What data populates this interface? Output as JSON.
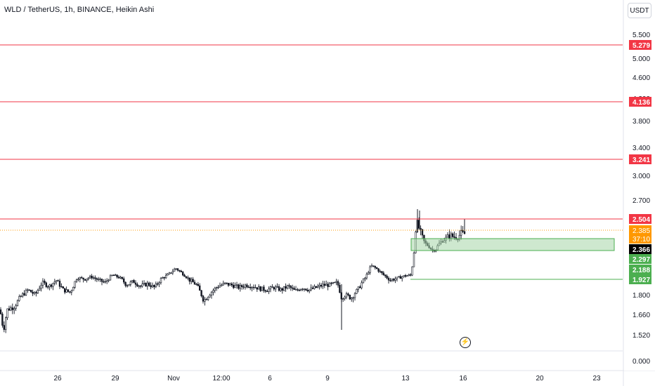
{
  "header": {
    "title": "WLD / TetherUS, 1h, BINANCE, Heikin Ashi",
    "currency_button": "USDT"
  },
  "colors": {
    "up": "#131722",
    "down": "#131722",
    "level_line": "#f23645",
    "support_line": "#4caf50",
    "zone_fill": "#a5d6a7",
    "current_price": "#000000",
    "last_close_badge": "#ff9800",
    "axis_text": "#131722",
    "grid": "#e0e3eb"
  },
  "icons": {
    "replay": "lightning-icon"
  },
  "chart_data": {
    "type": "candlestick",
    "style": "Heikin Ashi",
    "y_ticks": [
      5.5,
      5.0,
      4.6,
      4.2,
      3.8,
      3.4,
      3.0,
      2.7,
      1.8,
      1.66,
      1.52,
      0.0
    ],
    "y_tick_labels": [
      "5.500",
      "5.000",
      "4.600",
      "4.200",
      "3.800",
      "3.400",
      "3.000",
      "2.700",
      "1.800",
      "1.660",
      "1.520",
      "0.000"
    ],
    "x_ticks": [
      "26",
      "29",
      "Nov",
      "12:00",
      "6",
      "9",
      "13",
      "16",
      "20",
      "23"
    ],
    "resistance_levels": [
      {
        "value": 5.279,
        "label": "5.279"
      },
      {
        "value": 4.136,
        "label": "4.136"
      },
      {
        "value": 3.241,
        "label": "3.241"
      },
      {
        "value": 2.504,
        "label": "2.504"
      }
    ],
    "support_levels": [
      {
        "value": 1.927,
        "label": "1.927"
      }
    ],
    "zone": {
      "low": 2.297,
      "high": 2.405,
      "low_label": "2.297",
      "mid_label": "2.188"
    },
    "last_close": {
      "value": 2.385,
      "label": "2.385",
      "countdown": "37:10"
    },
    "current_price": {
      "value": 2.366,
      "label": "2.366"
    },
    "series_anchors": [
      [
        0,
        1.7
      ],
      [
        5,
        1.56
      ],
      [
        10,
        1.7
      ],
      [
        20,
        1.72
      ],
      [
        30,
        1.79
      ],
      [
        40,
        1.84
      ],
      [
        50,
        1.8
      ],
      [
        60,
        1.9
      ],
      [
        70,
        1.87
      ],
      [
        80,
        1.92
      ],
      [
        90,
        1.84
      ],
      [
        100,
        1.82
      ],
      [
        110,
        1.95
      ],
      [
        120,
        1.93
      ],
      [
        130,
        1.96
      ],
      [
        140,
        1.92
      ],
      [
        150,
        1.9
      ],
      [
        160,
        1.98
      ],
      [
        170,
        1.95
      ],
      [
        180,
        1.88
      ],
      [
        190,
        1.91
      ],
      [
        200,
        1.87
      ],
      [
        210,
        1.89
      ],
      [
        220,
        1.86
      ],
      [
        230,
        1.94
      ],
      [
        240,
        1.99
      ],
      [
        250,
        2.07
      ],
      [
        260,
        2.0
      ],
      [
        270,
        1.92
      ],
      [
        280,
        1.88
      ],
      [
        290,
        1.76
      ],
      [
        300,
        1.82
      ],
      [
        310,
        1.87
      ],
      [
        320,
        1.89
      ],
      [
        330,
        1.88
      ],
      [
        340,
        1.86
      ],
      [
        350,
        1.88
      ],
      [
        360,
        1.87
      ],
      [
        370,
        1.85
      ],
      [
        380,
        1.84
      ],
      [
        390,
        1.86
      ],
      [
        400,
        1.84
      ],
      [
        410,
        1.87
      ],
      [
        420,
        1.83
      ],
      [
        430,
        1.86
      ],
      [
        440,
        1.84
      ],
      [
        450,
        1.86
      ],
      [
        460,
        1.88
      ],
      [
        470,
        1.88
      ],
      [
        480,
        1.9
      ],
      [
        486,
        1.78
      ],
      [
        490,
        1.8
      ],
      [
        500,
        1.78
      ],
      [
        510,
        1.85
      ],
      [
        520,
        1.95
      ],
      [
        528,
        2.1
      ],
      [
        535,
        2.07
      ],
      [
        545,
        1.99
      ],
      [
        555,
        1.92
      ],
      [
        565,
        1.94
      ],
      [
        575,
        1.97
      ],
      [
        585,
        1.98
      ],
      [
        588,
        2.2
      ],
      [
        592,
        2.5
      ],
      [
        596,
        2.46
      ],
      [
        600,
        2.42
      ],
      [
        605,
        2.36
      ],
      [
        610,
        2.34
      ],
      [
        615,
        2.3
      ],
      [
        620,
        2.31
      ],
      [
        625,
        2.36
      ],
      [
        630,
        2.39
      ],
      [
        640,
        2.42
      ],
      [
        650,
        2.41
      ],
      [
        656,
        2.43
      ],
      [
        662,
        2.43
      ]
    ]
  }
}
